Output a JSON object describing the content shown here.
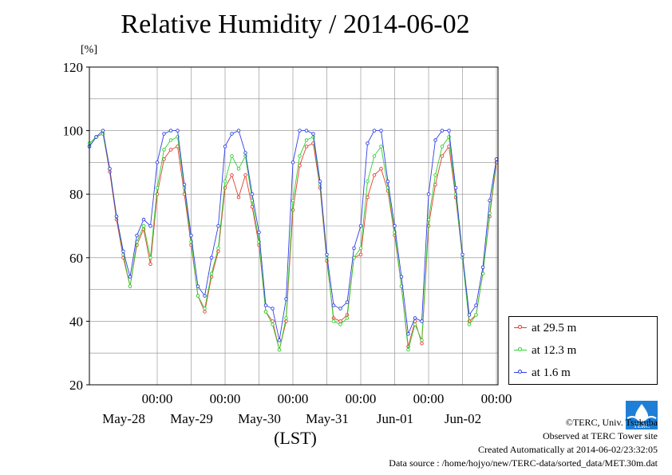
{
  "chart_data": {
    "type": "line",
    "title": "Relative Humidity / 2014-06-02",
    "ylabel": "[%]",
    "xlabel": "(LST)",
    "ylim": [
      20,
      120
    ],
    "yticks": [
      20,
      40,
      60,
      80,
      100,
      120
    ],
    "xlim_days": [
      0,
      6
    ],
    "x_time_ticks": [
      {
        "time": "00:00",
        "date": "May-28"
      },
      {
        "time": "00:00",
        "date": "May-29"
      },
      {
        "time": "00:00",
        "date": "May-30"
      },
      {
        "time": "00:00",
        "date": "May-31"
      },
      {
        "time": "00:00",
        "date": "Jun-01"
      },
      {
        "time": "00:00",
        "date": "Jun-02"
      }
    ],
    "grid": true,
    "legend_position": "bottom-right",
    "series": [
      {
        "name": "at 29.5 m",
        "color": "#e33b2c",
        "x": [
          0.0,
          0.1,
          0.2,
          0.3,
          0.4,
          0.5,
          0.6,
          0.7,
          0.8,
          0.9,
          1.0,
          1.1,
          1.2,
          1.3,
          1.4,
          1.5,
          1.6,
          1.7,
          1.8,
          1.9,
          2.0,
          2.1,
          2.2,
          2.3,
          2.4,
          2.5,
          2.6,
          2.7,
          2.8,
          2.9,
          3.0,
          3.1,
          3.2,
          3.3,
          3.4,
          3.5,
          3.6,
          3.7,
          3.8,
          3.9,
          4.0,
          4.1,
          4.2,
          4.3,
          4.4,
          4.5,
          4.6,
          4.7,
          4.8,
          4.9,
          5.0,
          5.1,
          5.2,
          5.3,
          5.4,
          5.5,
          5.6,
          5.7,
          5.8,
          5.9,
          6.0
        ],
        "y": [
          95,
          98,
          99,
          87,
          72,
          60,
          51,
          64,
          69,
          58,
          80,
          91,
          94,
          95,
          80,
          64,
          48,
          43,
          54,
          62,
          82,
          86,
          79,
          86,
          76,
          64,
          43,
          40,
          31,
          40,
          75,
          89,
          95,
          96,
          82,
          59,
          41,
          40,
          42,
          60,
          61,
          79,
          86,
          88,
          81,
          67,
          51,
          32,
          40,
          33,
          70,
          83,
          92,
          95,
          79,
          60,
          40,
          42,
          55,
          73,
          90
        ]
      },
      {
        "name": "at 12.3 m",
        "color": "#2ed12e",
        "x": [
          0.0,
          0.1,
          0.2,
          0.3,
          0.4,
          0.5,
          0.6,
          0.7,
          0.8,
          0.9,
          1.0,
          1.1,
          1.2,
          1.3,
          1.4,
          1.5,
          1.6,
          1.7,
          1.8,
          1.9,
          2.0,
          2.1,
          2.2,
          2.3,
          2.4,
          2.5,
          2.6,
          2.7,
          2.8,
          2.9,
          3.0,
          3.1,
          3.2,
          3.3,
          3.4,
          3.5,
          3.6,
          3.7,
          3.8,
          3.9,
          4.0,
          4.1,
          4.2,
          4.3,
          4.4,
          4.5,
          4.6,
          4.7,
          4.8,
          4.9,
          5.0,
          5.1,
          5.2,
          5.3,
          5.4,
          5.5,
          5.6,
          5.7,
          5.8,
          5.9,
          6.0
        ],
        "y": [
          96,
          98,
          99,
          88,
          73,
          61,
          51,
          65,
          70,
          60,
          82,
          94,
          97,
          98,
          82,
          65,
          48,
          44,
          55,
          63,
          84,
          92,
          88,
          92,
          78,
          65,
          43,
          39,
          31,
          41,
          78,
          92,
          97,
          98,
          83,
          60,
          40,
          39,
          41,
          60,
          63,
          84,
          92,
          95,
          82,
          68,
          51,
          31,
          39,
          34,
          72,
          86,
          95,
          98,
          80,
          60,
          39,
          42,
          55,
          74,
          91
        ]
      },
      {
        "name": "at 1.6 m",
        "color": "#2f3ee8",
        "x": [
          0.0,
          0.1,
          0.2,
          0.3,
          0.4,
          0.5,
          0.6,
          0.7,
          0.8,
          0.9,
          1.0,
          1.1,
          1.2,
          1.3,
          1.4,
          1.5,
          1.6,
          1.7,
          1.8,
          1.9,
          2.0,
          2.1,
          2.2,
          2.3,
          2.4,
          2.5,
          2.6,
          2.7,
          2.8,
          2.9,
          3.0,
          3.1,
          3.2,
          3.3,
          3.4,
          3.5,
          3.6,
          3.7,
          3.8,
          3.9,
          4.0,
          4.1,
          4.2,
          4.3,
          4.4,
          4.5,
          4.6,
          4.7,
          4.8,
          4.9,
          5.0,
          5.1,
          5.2,
          5.3,
          5.4,
          5.5,
          5.6,
          5.7,
          5.8,
          5.9,
          6.0
        ],
        "y": [
          95,
          98,
          100,
          88,
          73,
          62,
          54,
          67,
          72,
          70,
          90,
          99,
          100,
          100,
          83,
          67,
          51,
          48,
          60,
          70,
          95,
          99,
          100,
          93,
          80,
          68,
          45,
          44,
          34,
          47,
          90,
          100,
          100,
          99,
          84,
          61,
          45,
          44,
          46,
          63,
          70,
          96,
          100,
          100,
          84,
          70,
          54,
          36,
          41,
          40,
          80,
          97,
          100,
          100,
          82,
          61,
          42,
          45,
          57,
          78,
          91
        ]
      }
    ]
  },
  "legend": {
    "items": [
      {
        "label": "at 29.5 m",
        "color": "#e33b2c"
      },
      {
        "label": "at 12.3 m",
        "color": "#2ed12e"
      },
      {
        "label": "at 1.6 m",
        "color": "#2f3ee8"
      }
    ]
  },
  "footer": {
    "copyright": "©TERC, Univ. Tsukuba",
    "site": "Observed at TERC Tower site",
    "created": "Created Automatically at 2014-06-02/23:32:05",
    "source": "Data source : /home/hojyo/new/TERC-data/sorted_data/MET.30m.dat"
  },
  "logo": {
    "text": "TERC",
    "icon": "terc-logo-icon",
    "color": "#1f7fd6"
  }
}
